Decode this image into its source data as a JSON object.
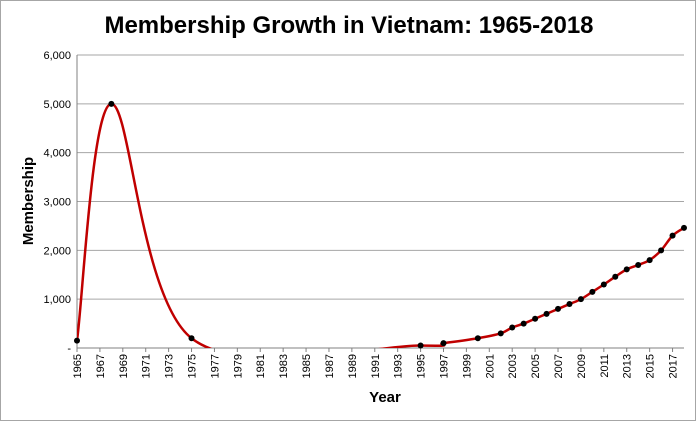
{
  "chart_data": {
    "type": "line",
    "title": "Membership Growth in Vietnam: 1965-2018",
    "xlabel": "Year",
    "ylabel": "Membership",
    "xlim": [
      1965,
      2018
    ],
    "ylim": [
      0,
      6000
    ],
    "y_ticks": [
      0,
      1000,
      2000,
      3000,
      4000,
      5000,
      6000
    ],
    "y_tick_labels": [
      "-",
      "1,000",
      "2,000",
      "3,000",
      "4,000",
      "5,000",
      "6,000"
    ],
    "x_ticks": [
      1965,
      1967,
      1969,
      1971,
      1973,
      1975,
      1977,
      1979,
      1981,
      1983,
      1985,
      1987,
      1989,
      1991,
      1993,
      1995,
      1997,
      1999,
      2001,
      2003,
      2005,
      2007,
      2009,
      2011,
      2013,
      2015,
      2017
    ],
    "x_tick_labels": [
      "1965",
      "1967",
      "1969",
      "1971",
      "1973",
      "1975",
      "1977",
      "1979",
      "1981",
      "1983",
      "1985",
      "1987",
      "1989",
      "1991",
      "1993",
      "1995",
      "1997",
      "1999",
      "2001",
      "2003",
      "2005",
      "2007",
      "2009",
      "2011",
      "2013",
      "2015",
      "2017"
    ],
    "grid": "horizontal",
    "legend": "none",
    "line_color": "#c00000",
    "marker_color": "#000000",
    "series": [
      {
        "x": [
          1965,
          1968,
          1975,
          1995,
          1997,
          2000,
          2002,
          2003,
          2004,
          2005,
          2006,
          2007,
          2008,
          2009,
          2010,
          2011,
          2012,
          2013,
          2014,
          2015,
          2016,
          2017,
          2018
        ],
        "values": [
          150,
          5000,
          200,
          50,
          100,
          200,
          300,
          420,
          500,
          600,
          700,
          800,
          900,
          1000,
          1150,
          1300,
          1460,
          1610,
          1700,
          1800,
          2000,
          2300,
          2460
        ]
      }
    ]
  }
}
